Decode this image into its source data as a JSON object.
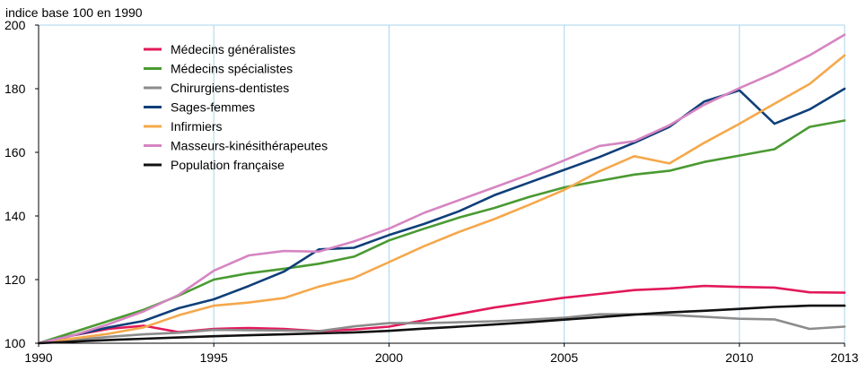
{
  "chart_data": {
    "type": "line",
    "ylabel": "indice base 100 en 1990",
    "xlim": [
      1990,
      2013
    ],
    "ylim": [
      100,
      200
    ],
    "x_ticks": [
      1990,
      1995,
      2000,
      2005,
      2010,
      2013
    ],
    "y_ticks": [
      100,
      120,
      140,
      160,
      180,
      200
    ],
    "grid": "vertical lines at x ticks",
    "legend_position": "top-left",
    "x": [
      1990,
      1991,
      1992,
      1993,
      1994,
      1995,
      1996,
      1997,
      1998,
      1999,
      2000,
      2001,
      2002,
      2003,
      2004,
      2005,
      2006,
      2007,
      2008,
      2009,
      2010,
      2011,
      2012,
      2013
    ],
    "series": [
      {
        "name": "Médecins généralistes",
        "color": "#e2195a",
        "values": [
          100,
          102.5,
          104.5,
          105.5,
          103.5,
          104.5,
          104.8,
          104.5,
          103.8,
          104.3,
          105.2,
          107.2,
          109.2,
          111.2,
          112.8,
          114.3,
          115.5,
          116.7,
          117.2,
          118,
          117.7,
          117.5,
          116,
          115.9
        ]
      },
      {
        "name": "Médecins spécialistes",
        "color": "#4a9a32",
        "values": [
          100,
          103.5,
          107,
          110.5,
          115,
          120,
          122,
          123.4,
          125,
          127.2,
          132.3,
          136,
          139.5,
          142.5,
          146,
          149,
          151,
          153,
          154.2,
          157,
          159,
          161,
          168,
          170
        ]
      },
      {
        "name": "Chirurgiens-dentistes",
        "color": "#8c8c8c",
        "values": [
          100,
          101,
          102,
          102.8,
          103.3,
          104.2,
          104.1,
          104,
          103.8,
          105.3,
          106.3,
          106.3,
          106.6,
          106.9,
          107.4,
          108,
          109.1,
          109.1,
          108.9,
          108.3,
          107.7,
          107.5,
          104.5,
          105.2
        ]
      },
      {
        "name": "Sages-femmes",
        "color": "#0f3f7a",
        "values": [
          100,
          102.5,
          105,
          107,
          111,
          113.8,
          118,
          122.5,
          129.5,
          130,
          134,
          137.5,
          141.5,
          146.5,
          150.5,
          154.5,
          158.5,
          163,
          168,
          176,
          179.5,
          169,
          173.5,
          180
        ]
      },
      {
        "name": "Infirmiers",
        "color": "#f5a84b",
        "values": [
          100,
          101.5,
          103,
          105,
          108.8,
          111.8,
          112.8,
          114.2,
          117.8,
          120.5,
          125.5,
          130.5,
          135,
          139,
          143.5,
          148.2,
          154,
          158.8,
          156.5,
          163,
          169,
          175.3,
          181.5,
          190.5
        ]
      },
      {
        "name": "Masseurs-kinésithérapeutes",
        "color": "#d685c2",
        "values": [
          100,
          102.5,
          106,
          110,
          115.2,
          122.8,
          127.6,
          129,
          128.8,
          132,
          136,
          141,
          145,
          149,
          153,
          157.5,
          162,
          163.5,
          168.5,
          175,
          180.2,
          185,
          190.5,
          197
        ]
      },
      {
        "name": "Population française",
        "color": "#111111",
        "values": [
          100,
          100.5,
          101,
          101.4,
          101.8,
          102.2,
          102.5,
          102.8,
          103.1,
          103.4,
          103.9,
          104.6,
          105.2,
          105.9,
          106.6,
          107.4,
          108.2,
          109,
          109.7,
          110.2,
          110.8,
          111.4,
          111.8,
          111.8
        ]
      }
    ]
  }
}
